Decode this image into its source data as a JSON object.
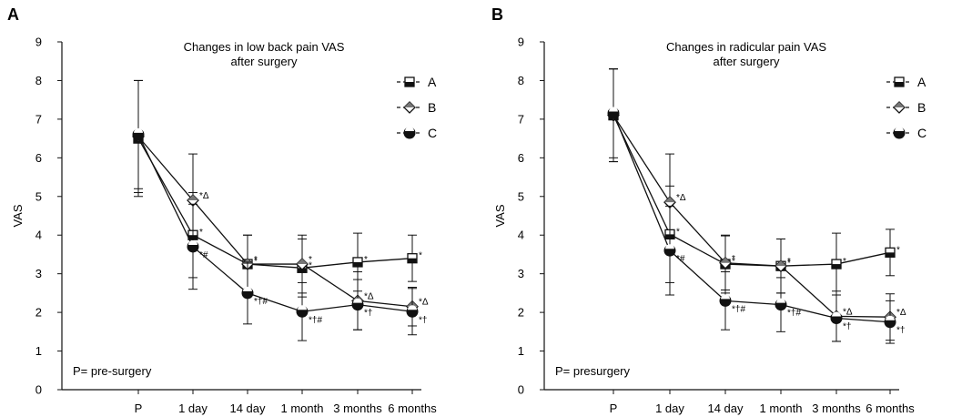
{
  "chart_data": [
    {
      "type": "line",
      "panel_label": "A",
      "title_lines": [
        "Changes in low back pain VAS",
        "after surgery"
      ],
      "xlabel": "",
      "ylabel": "VAS",
      "ylim": [
        0,
        9
      ],
      "yticks": [
        "0",
        "1",
        "2",
        "3",
        "4",
        "5",
        "6",
        "7",
        "8",
        "9"
      ],
      "categories": [
        "P",
        "1 day",
        "14 day",
        "1 month",
        "3 months",
        "6 months"
      ],
      "note": "P= pre-surgery",
      "legend_position": "top-right",
      "series": [
        {
          "name": "A",
          "marker": "square",
          "values": [
            6.5,
            4.0,
            3.25,
            3.15,
            3.3,
            3.4
          ],
          "errors": [
            1.5,
            1.1,
            0.75,
            0.75,
            0.75,
            0.6
          ],
          "annotations": [
            "",
            "*",
            "*",
            "*",
            "*",
            "*"
          ]
        },
        {
          "name": "B",
          "marker": "diamond",
          "values": [
            6.55,
            4.9,
            3.25,
            3.25,
            2.3,
            2.15
          ],
          "errors": [
            1.45,
            1.2,
            0.75,
            0.75,
            0.75,
            0.5
          ],
          "annotations": [
            "",
            "*Δ",
            "*",
            "*",
            "*Δ",
            "*Δ"
          ]
        },
        {
          "name": "C",
          "marker": "circle",
          "values": [
            6.6,
            3.7,
            2.5,
            2.02,
            2.2,
            2.02
          ],
          "errors": [
            1.4,
            1.1,
            0.8,
            0.75,
            0.65,
            0.6
          ],
          "annotations": [
            "",
            "*#",
            "*†#",
            "*†#",
            "*†",
            "*†"
          ]
        }
      ]
    },
    {
      "type": "line",
      "panel_label": "B",
      "title_lines": [
        "Changes in radicular pain VAS",
        "after surgery"
      ],
      "xlabel": "",
      "ylabel": "VAS",
      "ylim": [
        0,
        9
      ],
      "yticks": [
        "0",
        "1",
        "2",
        "3",
        "4",
        "5",
        "6",
        "7",
        "8",
        "9"
      ],
      "categories": [
        "P",
        "1 day",
        "14 day",
        "1 month",
        "3 months",
        "6 months"
      ],
      "note": "P= presurgery",
      "legend_position": "top-right",
      "series": [
        {
          "name": "A",
          "marker": "square",
          "values": [
            7.1,
            4.02,
            3.25,
            3.2,
            3.25,
            3.55
          ],
          "errors": [
            1.2,
            1.25,
            0.75,
            0.7,
            0.8,
            0.6
          ],
          "annotations": [
            "",
            "*",
            "*",
            "*",
            "*",
            "*"
          ]
        },
        {
          "name": "B",
          "marker": "diamond",
          "values": [
            7.1,
            4.85,
            3.28,
            3.2,
            1.9,
            1.88
          ],
          "errors": [
            1.2,
            1.25,
            0.7,
            0.7,
            0.65,
            0.6
          ],
          "annotations": [
            "",
            "*Δ",
            "*",
            "*",
            "*Δ",
            "*Δ"
          ]
        },
        {
          "name": "C",
          "marker": "circle",
          "values": [
            7.15,
            3.6,
            2.3,
            2.2,
            1.85,
            1.75
          ],
          "errors": [
            1.15,
            1.15,
            0.75,
            0.7,
            0.6,
            0.55
          ],
          "annotations": [
            "",
            "*#",
            "*†#",
            "*†#",
            "*†",
            "*†"
          ]
        }
      ]
    }
  ]
}
